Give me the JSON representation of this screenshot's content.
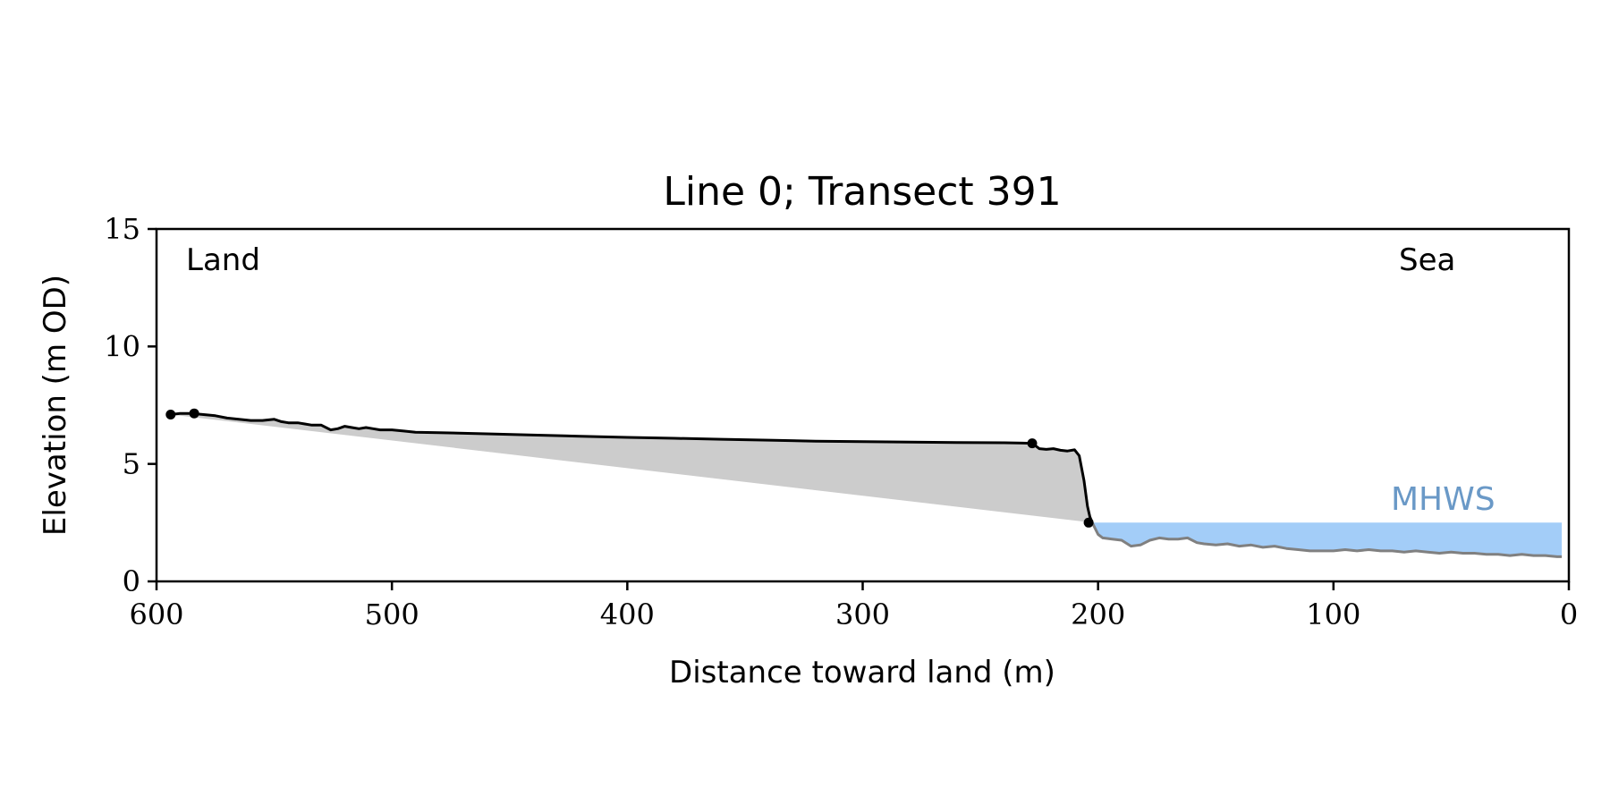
{
  "chart_data": {
    "type": "area",
    "title": "Line 0; Transect 391",
    "xlabel": "Distance toward land (m)",
    "ylabel": "Elevation (m OD)",
    "xlim": [
      600,
      0
    ],
    "ylim": [
      0,
      15
    ],
    "x_reversed": true,
    "xticks": [
      600,
      500,
      400,
      300,
      200,
      100,
      0
    ],
    "yticks": [
      0,
      5,
      10,
      15
    ],
    "xtick_labels": [
      "600",
      "500",
      "400",
      "300",
      "200",
      "100",
      "0"
    ],
    "ytick_labels": [
      "0",
      "5",
      "10",
      "15"
    ],
    "annotations": {
      "land": "Land",
      "sea": "Sea",
      "mhws": "MHWS"
    },
    "mhws_level": 2.5,
    "colors": {
      "profile": "#000000",
      "foreshore": "#808080",
      "fill_between": "#cccccc",
      "mhws_fill": "#a3cdf8",
      "mhws_text": "#6a99c7"
    },
    "series": [
      {
        "name": "",
        "role": "profile-above-mhws",
        "x": [
          594,
          590,
          585,
          580,
          575,
          570,
          565,
          560,
          555,
          550,
          547,
          544,
          540,
          537,
          534,
          530,
          526,
          523,
          520,
          517,
          514,
          511,
          508,
          505,
          500,
          495,
          490,
          480,
          460,
          440,
          420,
          400,
          380,
          360,
          340,
          320,
          300,
          280,
          260,
          240,
          228,
          225,
          222,
          219,
          216,
          213,
          210,
          208,
          206,
          204.5,
          203.5,
          202.5
        ],
        "y": [
          7.1,
          7.15,
          7.15,
          7.1,
          7.05,
          6.95,
          6.9,
          6.85,
          6.85,
          6.9,
          6.8,
          6.75,
          6.75,
          6.7,
          6.65,
          6.65,
          6.45,
          6.5,
          6.6,
          6.55,
          6.5,
          6.55,
          6.5,
          6.45,
          6.45,
          6.4,
          6.35,
          6.33,
          6.28,
          6.23,
          6.18,
          6.13,
          6.09,
          6.05,
          6.01,
          5.97,
          5.95,
          5.93,
          5.91,
          5.9,
          5.88,
          5.65,
          5.62,
          5.65,
          5.58,
          5.55,
          5.6,
          5.35,
          4.3,
          3.2,
          2.75,
          2.5
        ]
      },
      {
        "name": "",
        "role": "foreshore-below-mhws",
        "x": [
          202.5,
          200,
          198,
          194,
          190,
          186,
          182,
          178,
          174,
          170,
          166,
          162,
          158,
          155,
          150,
          145,
          140,
          135,
          130,
          125,
          120,
          115,
          110,
          105,
          100,
          95,
          90,
          85,
          80,
          75,
          70,
          65,
          60,
          55,
          50,
          45,
          40,
          35,
          30,
          25,
          20,
          15,
          10,
          5,
          3
        ],
        "y": [
          2.5,
          2.0,
          1.85,
          1.8,
          1.75,
          1.5,
          1.55,
          1.75,
          1.85,
          1.8,
          1.8,
          1.85,
          1.65,
          1.6,
          1.55,
          1.6,
          1.5,
          1.55,
          1.45,
          1.5,
          1.4,
          1.35,
          1.3,
          1.3,
          1.3,
          1.35,
          1.3,
          1.35,
          1.3,
          1.3,
          1.25,
          1.3,
          1.25,
          1.2,
          1.25,
          1.2,
          1.2,
          1.15,
          1.15,
          1.1,
          1.15,
          1.1,
          1.1,
          1.05,
          1.05
        ]
      },
      {
        "name": "",
        "role": "markers",
        "x": [
          594,
          584,
          228,
          204
        ],
        "y": [
          7.1,
          7.15,
          5.88,
          2.5
        ]
      }
    ]
  }
}
